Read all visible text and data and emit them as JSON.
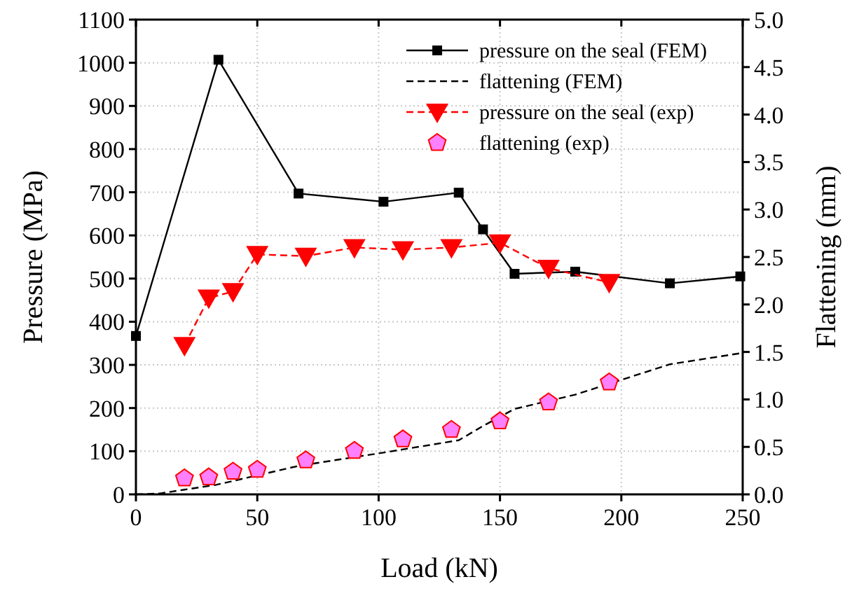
{
  "chart_data": {
    "type": "line",
    "xlabel": "Load (kN)",
    "ylabel": "Pressure (MPa)",
    "y2label": "Flattening (mm)",
    "xlim": [
      0,
      250
    ],
    "xticks": [
      0,
      50,
      100,
      150,
      200,
      250
    ],
    "ylim": [
      0,
      1100
    ],
    "yticks": [
      0,
      100,
      200,
      300,
      400,
      500,
      600,
      700,
      800,
      900,
      1000,
      1100
    ],
    "y2lim": [
      0,
      5
    ],
    "y2ticks": [
      {
        "value": 0,
        "label": "0.0"
      },
      {
        "value": 0.5,
        "label": "0.5"
      },
      {
        "value": 1,
        "label": "1.0"
      },
      {
        "value": 1.5,
        "label": "1.5"
      },
      {
        "value": 2,
        "label": "2.0"
      },
      {
        "value": 2.5,
        "label": "2.5"
      },
      {
        "value": 3,
        "label": "3.0"
      },
      {
        "value": 3.5,
        "label": "3.5"
      },
      {
        "value": 4,
        "label": "4.0"
      },
      {
        "value": 4.5,
        "label": "4.5"
      },
      {
        "value": 5,
        "label": "5.0"
      }
    ],
    "grid": true,
    "legend": "top right",
    "series": [
      {
        "name": "pressure on the seal (FEM)",
        "color": "#000000",
        "marker": "square",
        "line_style": "solid",
        "x": [
          0,
          34,
          67,
          102,
          133,
          143,
          156,
          181,
          220,
          249
        ],
        "values": [
          367,
          1007,
          697,
          678,
          699,
          614,
          511,
          516,
          489,
          505
        ]
      },
      {
        "name": "flattening (FEM)",
        "color": "#000000",
        "marker": "none",
        "line_style": "dashed",
        "axis": "y2",
        "x": [
          0,
          10,
          20,
          33,
          50,
          67,
          102,
          133,
          143,
          156,
          181,
          220,
          250
        ],
        "values": [
          0,
          0.01,
          0.05,
          0.1,
          0.2,
          0.3,
          0.44,
          0.57,
          0.72,
          0.9,
          1.05,
          1.37,
          1.49
        ]
      },
      {
        "name": "pressure on the seal (exp)",
        "color": "#ff0000",
        "marker": "triangle",
        "line_style": "dashed",
        "x": [
          20,
          30,
          40,
          50,
          70,
          90,
          110,
          130,
          150,
          170,
          195
        ],
        "values": [
          345,
          455,
          470,
          556,
          552,
          572,
          567,
          572,
          583,
          524,
          491
        ]
      },
      {
        "name": "flattening (exp)",
        "color": "#ff0000",
        "type": "scatter",
        "axis": "y2",
        "x": [
          20,
          30,
          40,
          50,
          70,
          90,
          110,
          130,
          150,
          170,
          195
        ],
        "values": [
          0.17,
          0.18,
          0.24,
          0.26,
          0.36,
          0.46,
          0.58,
          0.68,
          0.77,
          0.97,
          1.18
        ]
      }
    ]
  }
}
